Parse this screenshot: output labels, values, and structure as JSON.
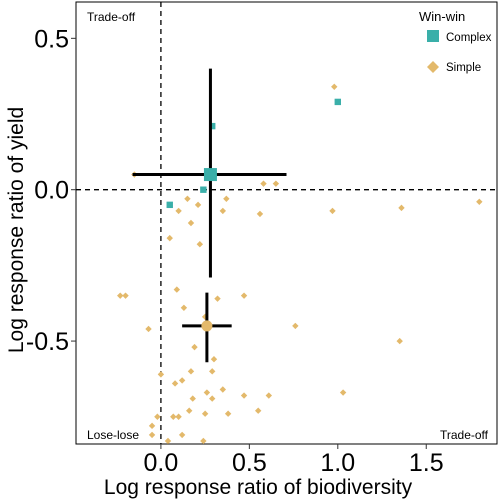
{
  "chart_data": {
    "type": "scatter",
    "xlabel": "Log response ratio of biodiversity",
    "ylabel": "Log response ratio of yield",
    "xlim": [
      -0.48,
      1.9
    ],
    "ylim": [
      -0.84,
      0.62
    ],
    "x_ticks": [
      "0.0",
      "0.5",
      "1.0",
      "1.5"
    ],
    "y_ticks": [
      "0.5",
      "0.0",
      "-0.5"
    ],
    "x_tick_values": [
      0.0,
      0.5,
      1.0,
      1.5
    ],
    "y_tick_values": [
      0.5,
      0.0,
      -0.5
    ],
    "grid": false,
    "reference_lines": {
      "x": 0,
      "y": 0
    },
    "legend": {
      "title": "Win-win",
      "placement": "top-right",
      "entries": [
        {
          "name": "Complex",
          "color": "#3aafa9",
          "marker": "square"
        },
        {
          "name": "Simple",
          "color": "#e3b96b",
          "marker": "diamond"
        }
      ]
    },
    "quadrant_labels": {
      "top_left": "Trade-off",
      "bottom_left": "Lose-lose",
      "bottom_right": "Trade-off"
    },
    "series": [
      {
        "name": "Complex",
        "color": "#3aafa9",
        "marker": "square",
        "points": [
          {
            "x": 0.29,
            "y": 0.21
          },
          {
            "x": 1.0,
            "y": 0.29
          },
          {
            "x": 0.24,
            "y": 0.0
          },
          {
            "x": 0.05,
            "y": -0.05
          }
        ],
        "mean": {
          "x": 0.28,
          "y": 0.05
        },
        "ci_x": [
          -0.16,
          0.71
        ],
        "ci_y": [
          -0.29,
          0.4
        ]
      },
      {
        "name": "Simple",
        "color": "#e3b96b",
        "marker": "diamond",
        "points": [
          {
            "x": 0.98,
            "y": 0.34
          },
          {
            "x": -0.15,
            "y": 0.05
          },
          {
            "x": 0.58,
            "y": 0.02
          },
          {
            "x": 0.65,
            "y": 0.02
          },
          {
            "x": 0.15,
            "y": -0.03
          },
          {
            "x": 0.21,
            "y": -0.05
          },
          {
            "x": 0.37,
            "y": -0.03
          },
          {
            "x": 0.35,
            "y": -0.07
          },
          {
            "x": 0.56,
            "y": -0.08
          },
          {
            "x": 0.97,
            "y": -0.07
          },
          {
            "x": 1.36,
            "y": -0.06
          },
          {
            "x": 1.8,
            "y": -0.04
          },
          {
            "x": 0.1,
            "y": -0.07
          },
          {
            "x": 0.17,
            "y": -0.11
          },
          {
            "x": 0.05,
            "y": -0.16
          },
          {
            "x": 0.22,
            "y": -0.18
          },
          {
            "x": -0.2,
            "y": -0.35
          },
          {
            "x": -0.23,
            "y": -0.35
          },
          {
            "x": 0.09,
            "y": -0.33
          },
          {
            "x": 0.32,
            "y": -0.36
          },
          {
            "x": 0.47,
            "y": -0.35
          },
          {
            "x": 0.13,
            "y": -0.39
          },
          {
            "x": 0.25,
            "y": -0.42
          },
          {
            "x": -0.07,
            "y": -0.46
          },
          {
            "x": 0.76,
            "y": -0.45
          },
          {
            "x": 1.35,
            "y": -0.5
          },
          {
            "x": 0.19,
            "y": -0.52
          },
          {
            "x": 0.3,
            "y": -0.56
          },
          {
            "x": 0.29,
            "y": -0.6
          },
          {
            "x": 0.17,
            "y": -0.6
          },
          {
            "x": 0.12,
            "y": -0.63
          },
          {
            "x": 0.08,
            "y": -0.64
          },
          {
            "x": 0.0,
            "y": -0.61
          },
          {
            "x": 0.26,
            "y": -0.67
          },
          {
            "x": 0.35,
            "y": -0.66
          },
          {
            "x": 0.18,
            "y": -0.69
          },
          {
            "x": 0.29,
            "y": -0.69
          },
          {
            "x": 0.47,
            "y": -0.68
          },
          {
            "x": 0.61,
            "y": -0.68
          },
          {
            "x": 1.03,
            "y": -0.67
          },
          {
            "x": 0.16,
            "y": -0.73
          },
          {
            "x": 0.25,
            "y": -0.74
          },
          {
            "x": 0.38,
            "y": -0.74
          },
          {
            "x": 0.55,
            "y": -0.73
          },
          {
            "x": 0.1,
            "y": -0.75
          },
          {
            "x": 0.07,
            "y": -0.75
          },
          {
            "x": -0.02,
            "y": -0.75
          },
          {
            "x": -0.05,
            "y": -0.78
          },
          {
            "x": -0.05,
            "y": -0.81
          },
          {
            "x": 0.12,
            "y": -0.81
          },
          {
            "x": 0.24,
            "y": -0.83
          },
          {
            "x": 0.04,
            "y": -0.83
          }
        ],
        "mean": {
          "x": 0.26,
          "y": -0.45
        },
        "ci_x": [
          0.12,
          0.4
        ],
        "ci_y": [
          -0.57,
          -0.34
        ]
      }
    ]
  }
}
